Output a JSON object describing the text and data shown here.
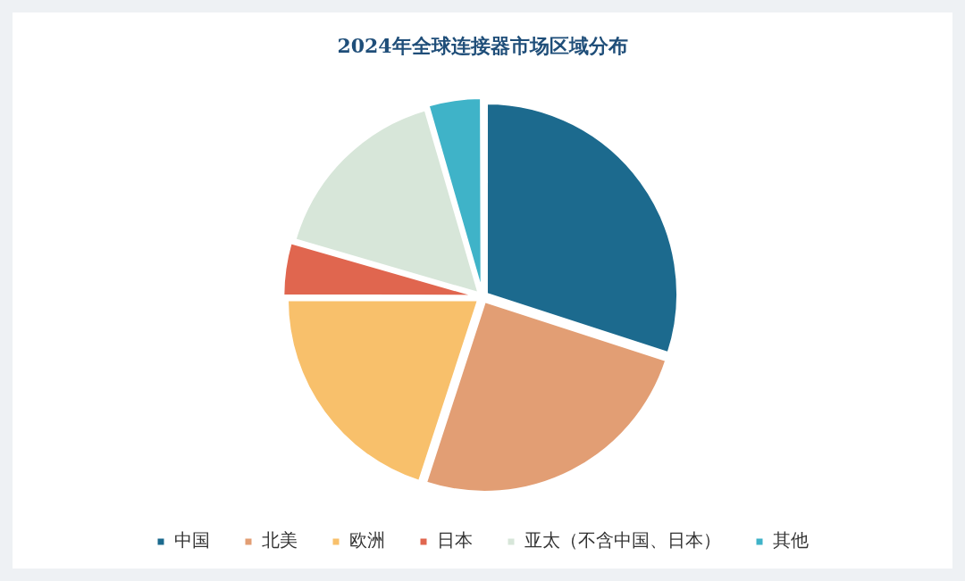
{
  "chart_data": {
    "type": "pie",
    "title": "2024年全球连接器市场区域分布",
    "categories": [
      "中国",
      "北美",
      "欧洲",
      "日本",
      "亚太（不含中国、日本）",
      "其他"
    ],
    "values": [
      30,
      25,
      20,
      4.5,
      16,
      4.5
    ],
    "colors": [
      "#1c6a8e",
      "#e29e74",
      "#f8c06b",
      "#e0664f",
      "#d7e6d9",
      "#3fb3c8"
    ],
    "legend": "bottom"
  }
}
